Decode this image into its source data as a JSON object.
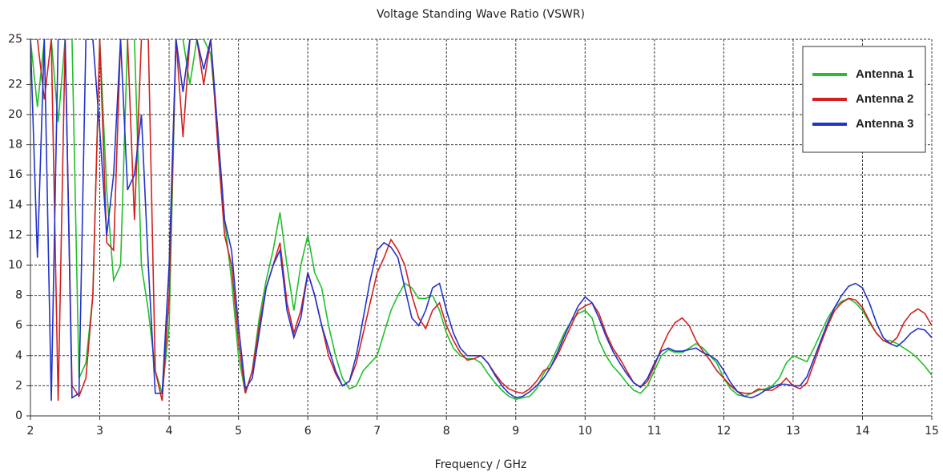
{
  "chart_data": {
    "type": "line",
    "title": "Voltage Standing Wave Ratio (VSWR)",
    "x_label": "Frequency / GHz",
    "x": [
      2.0,
      2.1,
      2.2,
      2.3,
      2.4,
      2.5,
      2.6,
      2.7,
      2.8,
      2.9,
      3.0,
      3.1,
      3.2,
      3.3,
      3.4,
      3.5,
      3.6,
      3.7,
      3.8,
      3.9,
      4.0,
      4.1,
      4.2,
      4.3,
      4.4,
      4.5,
      4.6,
      4.7,
      4.8,
      4.9,
      5.0,
      5.1,
      5.2,
      5.3,
      5.4,
      5.5,
      5.6,
      5.7,
      5.8,
      5.9,
      6.0,
      6.1,
      6.2,
      6.3,
      6.4,
      6.5,
      6.6,
      6.7,
      6.8,
      6.9,
      7.0,
      7.1,
      7.2,
      7.3,
      7.4,
      7.5,
      7.6,
      7.7,
      7.8,
      7.9,
      8.0,
      8.1,
      8.2,
      8.3,
      8.4,
      8.5,
      8.6,
      8.7,
      8.8,
      8.9,
      9.0,
      9.1,
      9.2,
      9.3,
      9.4,
      9.5,
      9.6,
      9.7,
      9.8,
      9.9,
      10.0,
      10.1,
      10.2,
      10.3,
      10.4,
      10.5,
      10.6,
      10.7,
      10.8,
      10.9,
      11.0,
      11.1,
      11.2,
      11.3,
      11.4,
      11.5,
      11.6,
      11.7,
      11.8,
      11.9,
      12.0,
      12.1,
      12.2,
      12.3,
      12.4,
      12.5,
      12.6,
      12.7,
      12.8,
      12.9,
      13.0,
      13.1,
      13.2,
      13.3,
      13.4,
      13.5,
      13.6,
      13.7,
      13.8,
      13.9,
      14.0,
      14.1,
      14.2,
      14.3,
      14.4,
      14.5,
      14.6,
      14.7,
      14.8,
      14.9,
      15.0
    ],
    "series": [
      {
        "name": "Antenna 1",
        "color": "#22c02a",
        "values": [
          25,
          20.5,
          25,
          25,
          19.5,
          25,
          25,
          2.5,
          3.5,
          8,
          25,
          15,
          9,
          10,
          25,
          25,
          10,
          7,
          3,
          1.5,
          6,
          25,
          25,
          22,
          25,
          25,
          24,
          19,
          13,
          9,
          4,
          1.5,
          3,
          6.5,
          9,
          11,
          13.5,
          10,
          7,
          10,
          12,
          9.5,
          8.5,
          6,
          4,
          2.5,
          1.8,
          2,
          3,
          3.5,
          4,
          5.5,
          7,
          8,
          8.8,
          8.5,
          7.8,
          7.8,
          8,
          7,
          5.5,
          4.5,
          4,
          3.8,
          3.8,
          3.5,
          2.8,
          2.2,
          1.7,
          1.3,
          1.1,
          1.2,
          1.3,
          1.8,
          2.8,
          3.5,
          4.5,
          5.5,
          6.3,
          6.8,
          7,
          6.5,
          5,
          4,
          3.3,
          2.8,
          2.2,
          1.7,
          1.5,
          2,
          3,
          4,
          4.4,
          4.2,
          4.2,
          4.5,
          4.8,
          4.5,
          4,
          3.5,
          2.5,
          1.8,
          1.4,
          1.3,
          1.5,
          1.7,
          1.8,
          2,
          2.5,
          3.5,
          4,
          3.8,
          3.6,
          4.5,
          5.5,
          6.5,
          7.2,
          7.6,
          7.8,
          7.5,
          7,
          6.2,
          5.5,
          5,
          5,
          4.8,
          4.5,
          4.2,
          3.8,
          3.3,
          2.7
        ]
      },
      {
        "name": "Antenna 2",
        "color": "#d42020",
        "values": [
          25,
          25,
          21,
          25,
          1,
          25,
          2,
          1.3,
          2.5,
          8,
          25,
          11.5,
          11,
          25,
          25,
          13,
          25,
          25,
          3,
          1,
          8,
          25,
          18.5,
          25,
          25,
          22,
          25,
          18,
          12,
          10,
          5,
          1.5,
          3,
          6,
          8.5,
          10,
          11.5,
          7.5,
          5.5,
          7,
          9.5,
          8,
          6,
          4,
          2.8,
          2,
          2.3,
          3.5,
          5.5,
          7.5,
          9.5,
          10.5,
          11.7,
          11,
          10,
          8,
          6.5,
          5.8,
          7,
          7.5,
          6,
          5,
          4.2,
          3.7,
          3.8,
          4,
          3.5,
          2.8,
          2.2,
          1.8,
          1.6,
          1.5,
          1.8,
          2.3,
          3,
          3.2,
          4,
          5,
          6,
          7,
          7.3,
          7.5,
          6.8,
          5.5,
          4.5,
          3.8,
          3,
          2.2,
          1.9,
          2.3,
          3.3,
          4.5,
          5.5,
          6.2,
          6.5,
          6,
          5,
          4.3,
          3.7,
          3,
          2.5,
          2,
          1.6,
          1.5,
          1.5,
          1.8,
          1.7,
          1.7,
          2,
          2.5,
          2,
          1.8,
          2.2,
          3.5,
          4.8,
          6,
          7,
          7.5,
          7.8,
          7.7,
          7.2,
          6.3,
          5.5,
          5,
          4.8,
          5.2,
          6.2,
          6.8,
          7.1,
          6.8,
          6
        ]
      },
      {
        "name": "Antenna 3",
        "color": "#2233cc",
        "values": [
          25,
          10.5,
          25,
          1,
          25,
          25,
          1.2,
          1.5,
          25,
          25,
          19,
          12,
          16,
          25,
          15,
          16,
          20,
          10,
          1.5,
          1.5,
          10,
          25,
          21.5,
          25,
          25,
          23,
          25,
          19,
          13,
          11,
          6,
          1.8,
          2.5,
          5.5,
          8.5,
          10,
          11,
          7,
          5.2,
          6.5,
          9.5,
          8,
          6,
          4.5,
          3,
          2,
          2.3,
          4,
          6.5,
          9,
          11,
          11.5,
          11.2,
          10.5,
          8.5,
          6.5,
          6,
          7,
          8.5,
          8.8,
          7,
          5.5,
          4.5,
          4,
          4,
          4,
          3.5,
          2.7,
          2,
          1.5,
          1.2,
          1.3,
          1.6,
          2,
          2.5,
          3.2,
          4.2,
          5.3,
          6.3,
          7.3,
          7.9,
          7.5,
          6.5,
          5.3,
          4.3,
          3.5,
          2.8,
          2.2,
          1.9,
          2.5,
          3.5,
          4.3,
          4.5,
          4.3,
          4.3,
          4.4,
          4.5,
          4.2,
          4,
          3.7,
          3,
          2.2,
          1.6,
          1.3,
          1.2,
          1.4,
          1.7,
          1.9,
          2.1,
          2.1,
          2,
          2,
          2.6,
          3.8,
          5,
          6.2,
          7.2,
          8,
          8.6,
          8.8,
          8.5,
          7.5,
          6.2,
          5.2,
          4.8,
          4.6,
          5,
          5.5,
          5.8,
          5.7,
          5.2
        ]
      }
    ],
    "xlim": [
      2,
      15
    ],
    "xticks": [
      2,
      3,
      4,
      5,
      6,
      7,
      8,
      9,
      10,
      11,
      12,
      13,
      14,
      15
    ],
    "ylim": [
      0,
      25
    ],
    "yticks": [
      0,
      2,
      4,
      6,
      8,
      10,
      12,
      14,
      16,
      18,
      20,
      22,
      25
    ],
    "grid": true,
    "legend": "upper right"
  }
}
